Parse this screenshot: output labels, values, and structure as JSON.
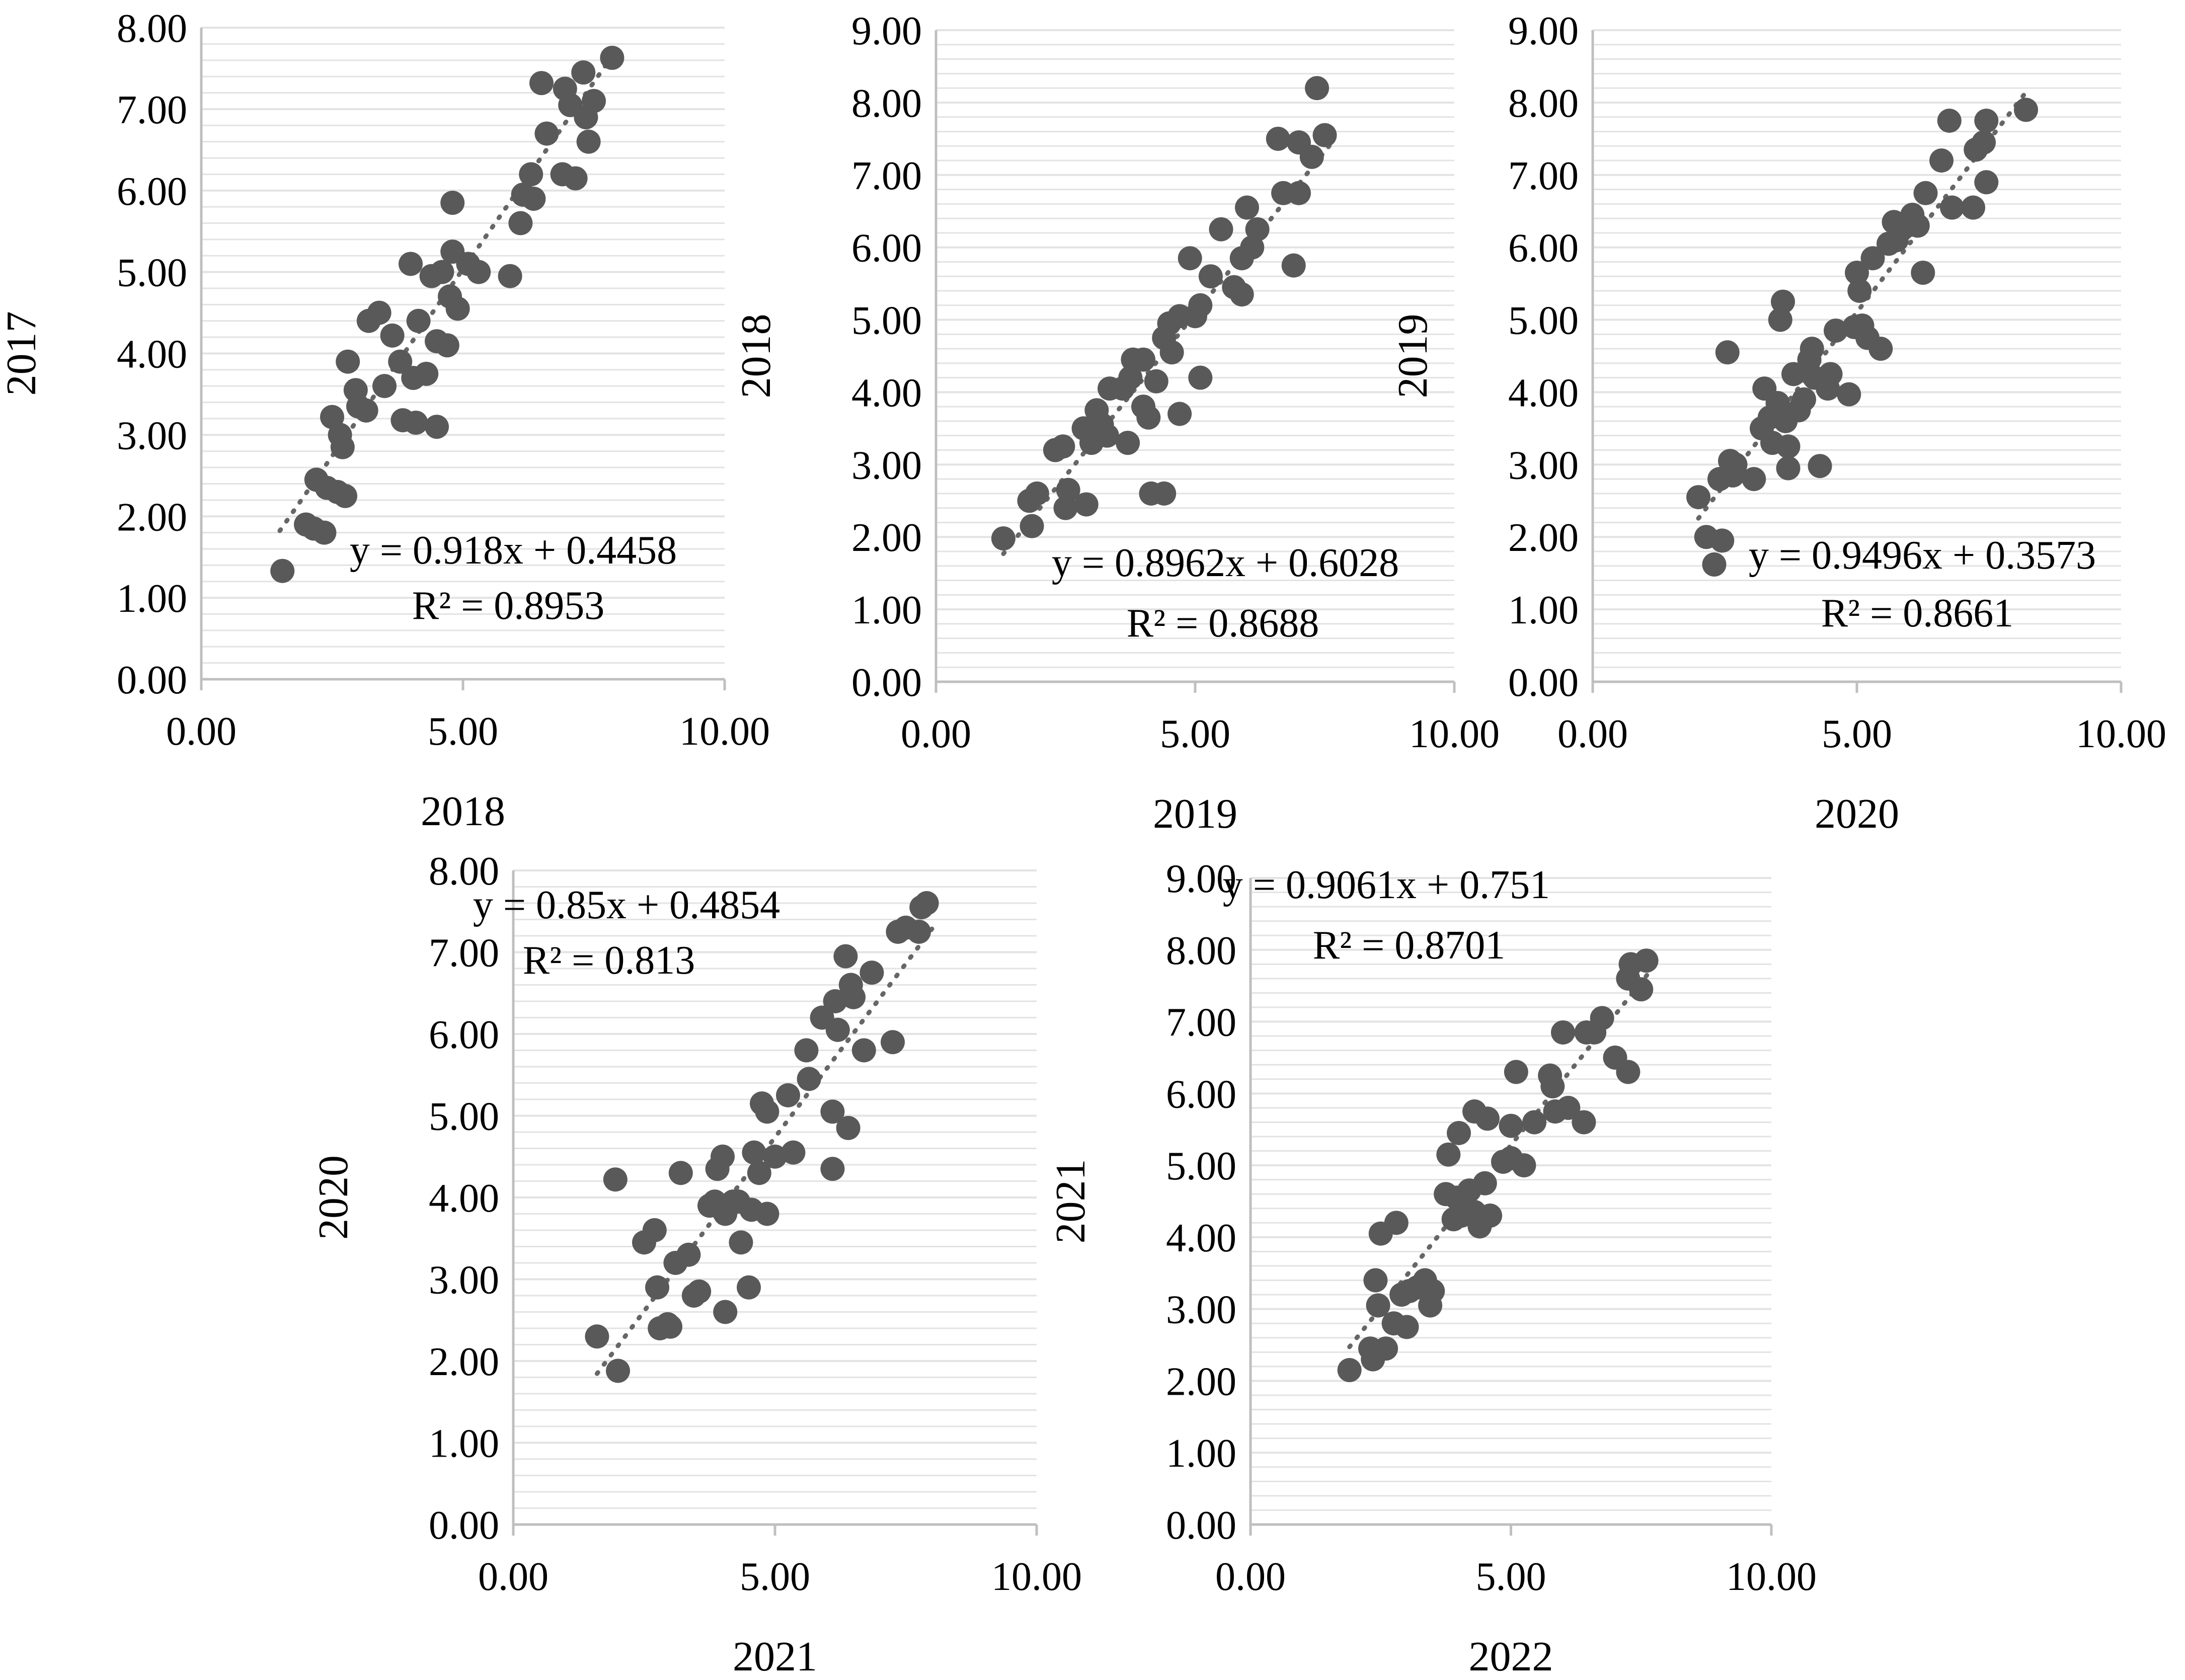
{
  "colors": {
    "marker": "#595959",
    "gridline": "#e3e3e3",
    "axis": "#bfbfbf",
    "trendline": "#666666",
    "text": "#000000"
  },
  "chart_data": [
    {
      "type": "scatter",
      "xlabel": "2018",
      "ylabel": "2017",
      "xlim": [
        0,
        10
      ],
      "ylim": [
        0,
        8
      ],
      "x_ticks": [
        "0.00",
        "5.00",
        "10.00"
      ],
      "y_ticks": [
        "0.00",
        "1.00",
        "2.00",
        "3.00",
        "4.00",
        "5.00",
        "6.00",
        "7.00",
        "8.00"
      ],
      "equation": "y = 0.918x + 0.4458",
      "r_squared": "R² = 0.8953",
      "trend": {
        "slope": 0.918,
        "intercept": 0.4458,
        "x_range": [
          1.5,
          7.8
        ]
      },
      "points": [
        [
          1.55,
          1.33
        ],
        [
          2.0,
          1.9
        ],
        [
          2.15,
          1.85
        ],
        [
          2.2,
          2.45
        ],
        [
          2.35,
          1.8
        ],
        [
          2.4,
          2.35
        ],
        [
          2.6,
          2.3
        ],
        [
          2.5,
          3.22
        ],
        [
          2.65,
          3.0
        ],
        [
          2.7,
          2.85
        ],
        [
          2.75,
          2.25
        ],
        [
          2.8,
          3.9
        ],
        [
          2.95,
          3.55
        ],
        [
          3.0,
          3.35
        ],
        [
          3.15,
          3.3
        ],
        [
          3.2,
          4.4
        ],
        [
          3.4,
          4.5
        ],
        [
          3.5,
          3.6
        ],
        [
          3.65,
          4.22
        ],
        [
          3.8,
          3.9
        ],
        [
          3.85,
          3.18
        ],
        [
          4.05,
          3.7
        ],
        [
          4.1,
          3.15
        ],
        [
          4.0,
          5.1
        ],
        [
          4.15,
          4.4
        ],
        [
          4.3,
          3.75
        ],
        [
          4.4,
          4.95
        ],
        [
          4.5,
          4.15
        ],
        [
          4.5,
          3.1
        ],
        [
          4.6,
          5.0
        ],
        [
          4.7,
          4.1
        ],
        [
          4.75,
          4.7
        ],
        [
          4.8,
          5.25
        ],
        [
          4.8,
          5.85
        ],
        [
          4.9,
          4.55
        ],
        [
          5.1,
          5.1
        ],
        [
          5.3,
          5.0
        ],
        [
          5.9,
          4.95
        ],
        [
          6.1,
          5.6
        ],
        [
          6.15,
          5.95
        ],
        [
          6.3,
          6.2
        ],
        [
          6.35,
          5.9
        ],
        [
          6.5,
          7.32
        ],
        [
          6.6,
          6.7
        ],
        [
          6.9,
          6.2
        ],
        [
          6.95,
          7.25
        ],
        [
          7.05,
          7.05
        ],
        [
          7.15,
          6.15
        ],
        [
          7.3,
          7.45
        ],
        [
          7.35,
          6.9
        ],
        [
          7.4,
          6.6
        ],
        [
          7.5,
          7.1
        ],
        [
          7.85,
          7.63
        ]
      ]
    },
    {
      "type": "scatter",
      "xlabel": "2019",
      "ylabel": "2018",
      "xlim": [
        0,
        10
      ],
      "ylim": [
        0,
        9
      ],
      "x_ticks": [
        "0.00",
        "5.00",
        "10.00"
      ],
      "y_ticks": [
        "0.00",
        "1.00",
        "2.00",
        "3.00",
        "4.00",
        "5.00",
        "6.00",
        "7.00",
        "8.00",
        "9.00"
      ],
      "equation": "y = 0.8962x + 0.6028",
      "r_squared": "R² = 0.8688",
      "trend": {
        "slope": 0.8962,
        "intercept": 0.6028,
        "x_range": [
          1.3,
          7.6
        ]
      },
      "points": [
        [
          1.3,
          1.98
        ],
        [
          1.8,
          2.5
        ],
        [
          1.85,
          2.15
        ],
        [
          1.95,
          2.6
        ],
        [
          2.3,
          3.2
        ],
        [
          2.45,
          3.25
        ],
        [
          2.5,
          2.4
        ],
        [
          2.55,
          2.65
        ],
        [
          2.85,
          3.5
        ],
        [
          2.9,
          2.45
        ],
        [
          3.0,
          3.3
        ],
        [
          3.1,
          3.75
        ],
        [
          3.2,
          3.55
        ],
        [
          3.3,
          3.4
        ],
        [
          3.35,
          4.05
        ],
        [
          3.6,
          4.05
        ],
        [
          3.7,
          3.3
        ],
        [
          3.75,
          4.2
        ],
        [
          3.8,
          4.45
        ],
        [
          4.0,
          4.45
        ],
        [
          4.0,
          3.8
        ],
        [
          4.1,
          3.65
        ],
        [
          4.15,
          2.6
        ],
        [
          4.25,
          4.15
        ],
        [
          4.4,
          2.6
        ],
        [
          4.4,
          4.75
        ],
        [
          4.5,
          4.95
        ],
        [
          4.55,
          4.55
        ],
        [
          4.7,
          3.7
        ],
        [
          4.7,
          5.05
        ],
        [
          4.9,
          5.85
        ],
        [
          5.0,
          5.05
        ],
        [
          5.1,
          5.2
        ],
        [
          5.1,
          4.2
        ],
        [
          5.3,
          5.6
        ],
        [
          5.5,
          6.25
        ],
        [
          5.75,
          5.45
        ],
        [
          5.9,
          5.35
        ],
        [
          5.9,
          5.85
        ],
        [
          6.0,
          6.55
        ],
        [
          6.1,
          6.0
        ],
        [
          6.2,
          6.25
        ],
        [
          6.6,
          7.5
        ],
        [
          6.7,
          6.75
        ],
        [
          6.9,
          5.75
        ],
        [
          7.0,
          7.45
        ],
        [
          7.0,
          6.75
        ],
        [
          7.25,
          7.25
        ],
        [
          7.35,
          8.2
        ],
        [
          7.5,
          7.55
        ]
      ]
    },
    {
      "type": "scatter",
      "xlabel": "2020",
      "ylabel": "2019",
      "xlim": [
        0,
        10
      ],
      "ylim": [
        0,
        9
      ],
      "x_ticks": [
        "0.00",
        "5.00",
        "10.00"
      ],
      "y_ticks": [
        "0.00",
        "1.00",
        "2.00",
        "3.00",
        "4.00",
        "5.00",
        "6.00",
        "7.00",
        "8.00",
        "9.00"
      ],
      "equation": "y = 0.9496x + 0.3573",
      "r_squared": "R² = 0.8661",
      "trend": {
        "slope": 0.9496,
        "intercept": 0.3573,
        "x_range": [
          2.0,
          8.2
        ]
      },
      "points": [
        [
          2.0,
          2.55
        ],
        [
          2.15,
          2.0
        ],
        [
          2.3,
          1.62
        ],
        [
          2.4,
          2.8
        ],
        [
          2.45,
          1.95
        ],
        [
          2.55,
          4.55
        ],
        [
          2.6,
          3.05
        ],
        [
          2.65,
          2.85
        ],
        [
          2.7,
          3.0
        ],
        [
          3.05,
          2.8
        ],
        [
          3.2,
          3.5
        ],
        [
          3.25,
          4.05
        ],
        [
          3.35,
          3.65
        ],
        [
          3.4,
          3.3
        ],
        [
          3.5,
          3.85
        ],
        [
          3.55,
          5.0
        ],
        [
          3.6,
          5.25
        ],
        [
          3.65,
          3.6
        ],
        [
          3.7,
          3.25
        ],
        [
          3.7,
          2.95
        ],
        [
          3.8,
          4.25
        ],
        [
          3.9,
          3.75
        ],
        [
          4.0,
          3.9
        ],
        [
          4.1,
          4.45
        ],
        [
          4.15,
          4.6
        ],
        [
          4.2,
          4.2
        ],
        [
          4.3,
          2.98
        ],
        [
          4.45,
          4.05
        ],
        [
          4.5,
          4.25
        ],
        [
          4.6,
          4.85
        ],
        [
          4.85,
          3.97
        ],
        [
          4.95,
          4.9
        ],
        [
          5.0,
          5.65
        ],
        [
          5.05,
          5.4
        ],
        [
          5.1,
          4.92
        ],
        [
          5.2,
          4.75
        ],
        [
          5.3,
          5.85
        ],
        [
          5.45,
          4.6
        ],
        [
          5.6,
          6.05
        ],
        [
          5.7,
          6.35
        ],
        [
          5.75,
          6.1
        ],
        [
          5.85,
          6.25
        ],
        [
          5.95,
          6.3
        ],
        [
          6.05,
          6.45
        ],
        [
          6.15,
          6.3
        ],
        [
          6.25,
          5.65
        ],
        [
          6.3,
          6.75
        ],
        [
          6.6,
          7.2
        ],
        [
          6.75,
          7.75
        ],
        [
          6.8,
          6.55
        ],
        [
          7.2,
          6.55
        ],
        [
          7.25,
          7.35
        ],
        [
          7.4,
          7.45
        ],
        [
          7.45,
          7.75
        ],
        [
          7.45,
          6.9
        ],
        [
          8.2,
          7.9
        ]
      ]
    },
    {
      "type": "scatter",
      "xlabel": "2021",
      "ylabel": "2020",
      "xlim": [
        0,
        10
      ],
      "ylim": [
        0,
        8
      ],
      "x_ticks": [
        "0.00",
        "5.00",
        "10.00"
      ],
      "y_ticks": [
        "0.00",
        "1.00",
        "2.00",
        "3.00",
        "4.00",
        "5.00",
        "6.00",
        "7.00",
        "8.00"
      ],
      "equation": "y = 0.85x + 0.4854",
      "r_squared": "R² = 0.813",
      "trend": {
        "slope": 0.85,
        "intercept": 0.4854,
        "x_range": [
          1.6,
          8.0
        ]
      },
      "points": [
        [
          1.6,
          2.3
        ],
        [
          1.95,
          4.22
        ],
        [
          2.0,
          1.88
        ],
        [
          2.5,
          3.45
        ],
        [
          2.7,
          3.6
        ],
        [
          2.75,
          2.9
        ],
        [
          2.8,
          2.4
        ],
        [
          2.95,
          2.45
        ],
        [
          3.0,
          2.42
        ],
        [
          3.1,
          3.2
        ],
        [
          3.2,
          4.3
        ],
        [
          3.35,
          3.3
        ],
        [
          3.45,
          2.8
        ],
        [
          3.55,
          2.85
        ],
        [
          3.75,
          3.9
        ],
        [
          3.85,
          3.95
        ],
        [
          3.9,
          4.35
        ],
        [
          4.0,
          3.85
        ],
        [
          4.0,
          4.5
        ],
        [
          4.05,
          3.8
        ],
        [
          4.05,
          2.6
        ],
        [
          4.2,
          3.95
        ],
        [
          4.3,
          3.95
        ],
        [
          4.35,
          3.45
        ],
        [
          4.5,
          2.9
        ],
        [
          4.55,
          3.85
        ],
        [
          4.6,
          4.55
        ],
        [
          4.7,
          4.3
        ],
        [
          4.75,
          5.15
        ],
        [
          4.85,
          5.05
        ],
        [
          4.85,
          3.8
        ],
        [
          5.0,
          4.5
        ],
        [
          5.25,
          5.25
        ],
        [
          5.35,
          4.55
        ],
        [
          5.6,
          5.8
        ],
        [
          5.65,
          5.45
        ],
        [
          5.9,
          6.2
        ],
        [
          6.1,
          5.05
        ],
        [
          6.15,
          6.4
        ],
        [
          6.2,
          6.05
        ],
        [
          6.1,
          4.35
        ],
        [
          6.35,
          6.95
        ],
        [
          6.4,
          4.85
        ],
        [
          6.45,
          6.6
        ],
        [
          6.5,
          6.45
        ],
        [
          6.7,
          5.8
        ],
        [
          6.85,
          6.75
        ],
        [
          7.25,
          5.9
        ],
        [
          7.35,
          7.25
        ],
        [
          7.5,
          7.3
        ],
        [
          7.75,
          7.25
        ],
        [
          7.8,
          7.55
        ],
        [
          7.9,
          7.6
        ]
      ]
    },
    {
      "type": "scatter",
      "xlabel": "2022",
      "ylabel": "2021",
      "xlim": [
        0,
        10
      ],
      "ylim": [
        0,
        9
      ],
      "x_ticks": [
        "0.00",
        "5.00",
        "10.00"
      ],
      "y_ticks": [
        "0.00",
        "1.00",
        "2.00",
        "3.00",
        "4.00",
        "5.00",
        "6.00",
        "7.00",
        "8.00",
        "9.00"
      ],
      "equation": "y = 0.9061x + 0.751",
      "r_squared": "R² = 0.8701",
      "trend": {
        "slope": 0.9061,
        "intercept": 0.751,
        "x_range": [
          1.9,
          7.7
        ]
      },
      "points": [
        [
          1.9,
          2.15
        ],
        [
          2.3,
          2.45
        ],
        [
          2.35,
          2.3
        ],
        [
          2.4,
          3.4
        ],
        [
          2.45,
          3.05
        ],
        [
          2.5,
          4.05
        ],
        [
          2.6,
          2.45
        ],
        [
          2.75,
          2.8
        ],
        [
          2.8,
          4.2
        ],
        [
          2.9,
          3.2
        ],
        [
          3.0,
          2.75
        ],
        [
          3.05,
          3.25
        ],
        [
          3.2,
          3.3
        ],
        [
          3.35,
          3.4
        ],
        [
          3.45,
          3.05
        ],
        [
          3.5,
          3.25
        ],
        [
          3.75,
          4.6
        ],
        [
          3.8,
          5.15
        ],
        [
          3.9,
          4.25
        ],
        [
          3.95,
          4.55
        ],
        [
          4.0,
          5.45
        ],
        [
          4.05,
          4.3
        ],
        [
          4.1,
          4.5
        ],
        [
          4.2,
          4.65
        ],
        [
          4.3,
          5.75
        ],
        [
          4.3,
          4.35
        ],
        [
          4.4,
          4.15
        ],
        [
          4.5,
          4.75
        ],
        [
          4.55,
          5.65
        ],
        [
          4.6,
          4.3
        ],
        [
          4.85,
          5.05
        ],
        [
          5.0,
          5.1
        ],
        [
          5.0,
          5.55
        ],
        [
          5.1,
          6.3
        ],
        [
          5.25,
          5.0
        ],
        [
          5.45,
          5.6
        ],
        [
          5.75,
          6.25
        ],
        [
          5.8,
          6.1
        ],
        [
          5.85,
          5.75
        ],
        [
          6.0,
          6.85
        ],
        [
          6.1,
          5.8
        ],
        [
          6.4,
          5.6
        ],
        [
          6.45,
          6.85
        ],
        [
          6.6,
          6.85
        ],
        [
          6.75,
          7.05
        ],
        [
          7.0,
          6.5
        ],
        [
          7.25,
          6.3
        ],
        [
          7.25,
          7.6
        ],
        [
          7.3,
          7.8
        ],
        [
          7.5,
          7.45
        ],
        [
          7.6,
          7.85
        ]
      ]
    }
  ]
}
